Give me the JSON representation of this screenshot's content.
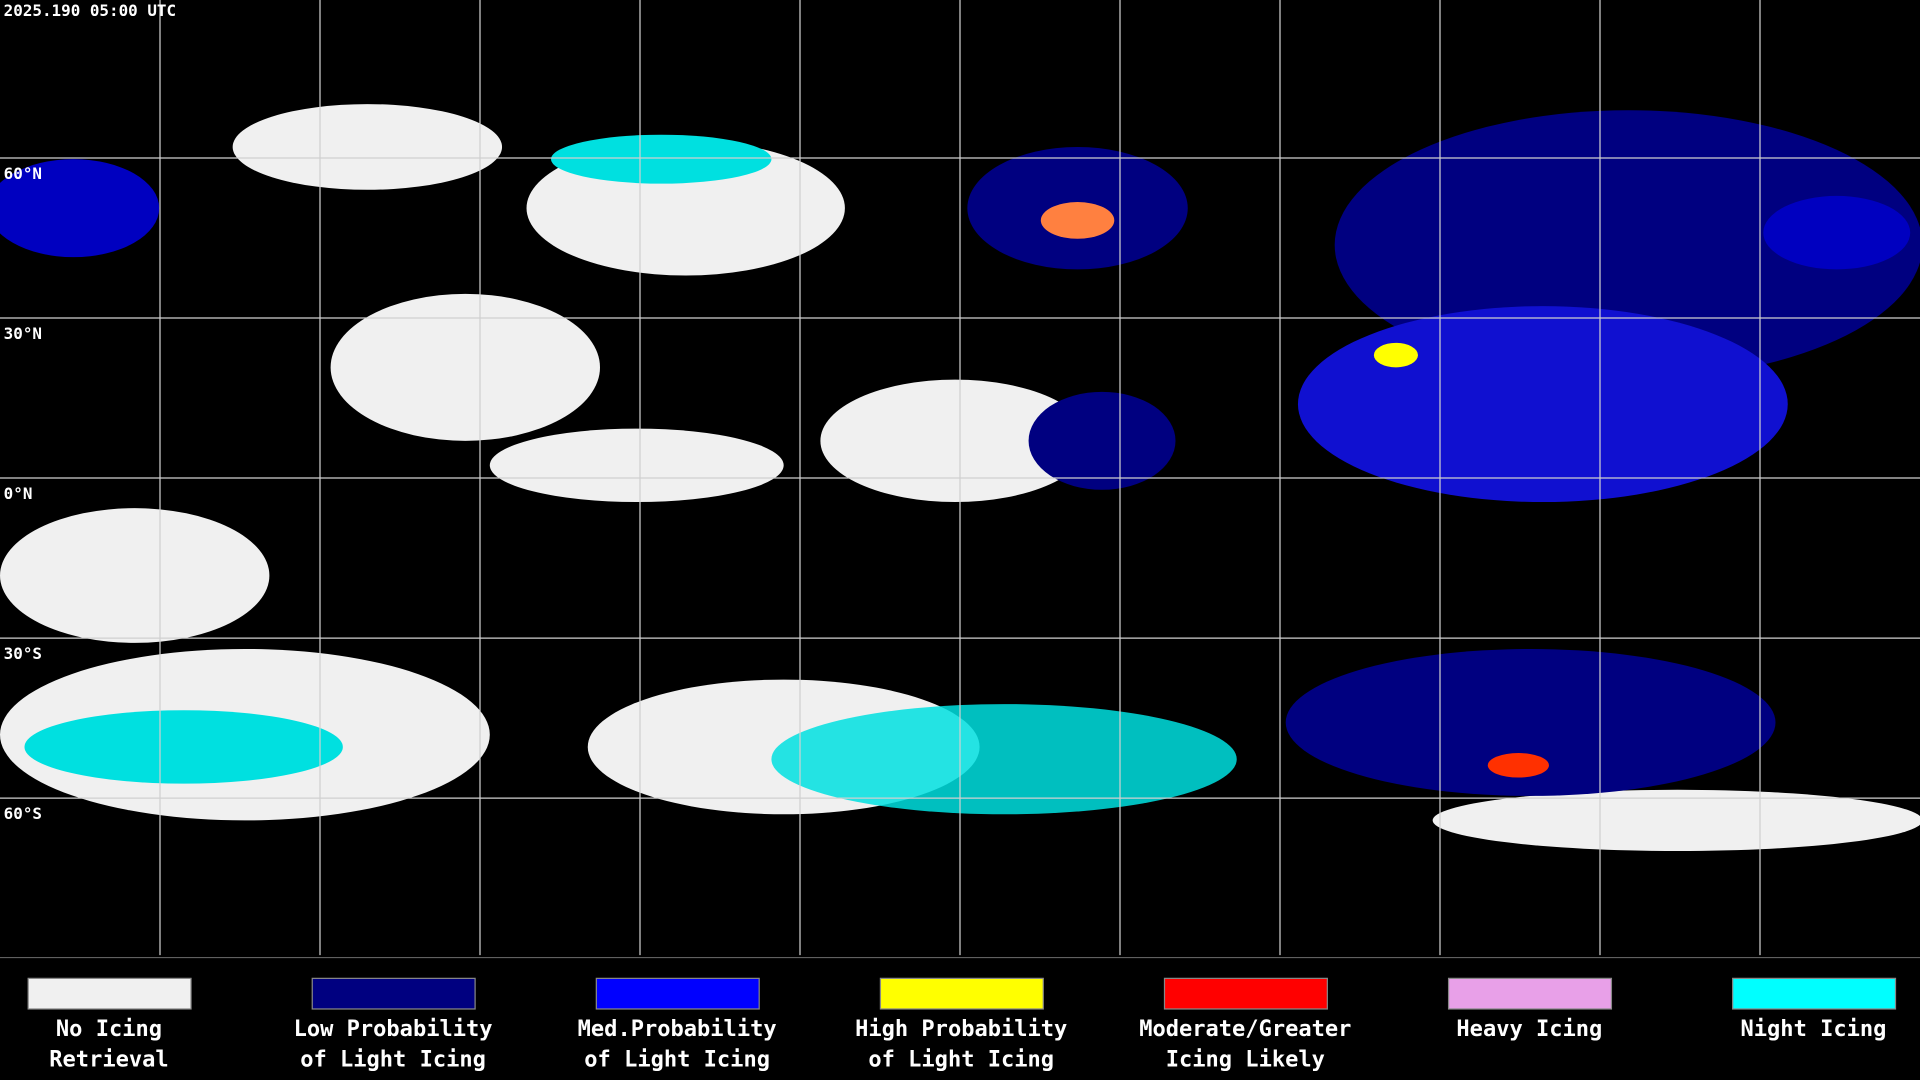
{
  "header": {
    "timestamp": "2025.190 05:00 UTC"
  },
  "map": {
    "latitude_labels": [
      "60°N",
      "30°N",
      "0°N",
      "30°S",
      "60°S"
    ]
  },
  "legend": {
    "items": [
      {
        "label": [
          "No Icing",
          "Retrieval"
        ],
        "color": "#f0f0f0"
      },
      {
        "label": [
          "Low Probability",
          "of Light Icing"
        ],
        "color": "#000080"
      },
      {
        "label": [
          "Med.Probability",
          "of Light Icing"
        ],
        "color": "#0000ff"
      },
      {
        "label": [
          "High Probability",
          "of Light Icing"
        ],
        "color": "#ffff00"
      },
      {
        "label": [
          "Moderate/Greater",
          "Icing Likely"
        ],
        "color": "#ff0000"
      },
      {
        "label": [
          "Heavy Icing"
        ],
        "color": "#e8a0e8"
      },
      {
        "label": [
          "Night Icing"
        ],
        "color": "#00ffff"
      }
    ]
  }
}
